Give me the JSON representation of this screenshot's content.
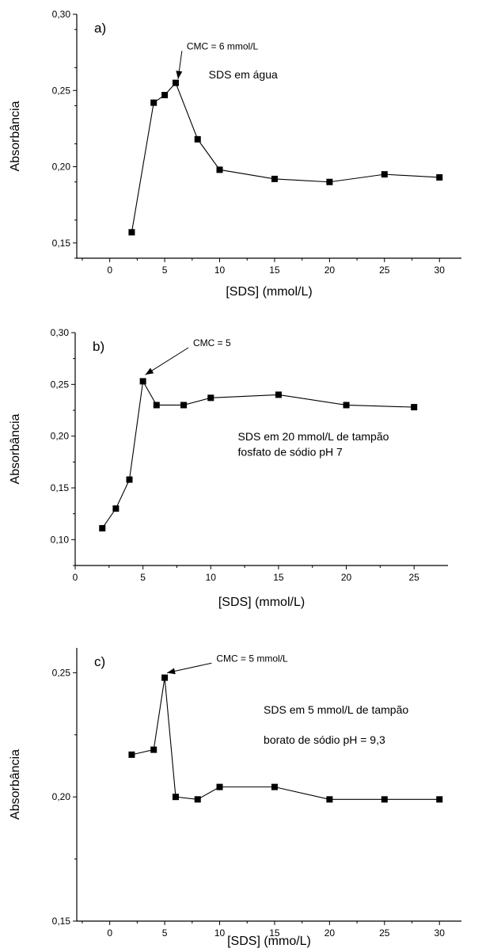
{
  "chart_data": [
    {
      "type": "line",
      "panel_label": "a)",
      "xlabel": "[SDS] (mmol/L)",
      "ylabel": "Absorbância",
      "xlim": [
        -3,
        32
      ],
      "ylim": [
        0.14,
        0.3
      ],
      "x_ticks": [
        0,
        5,
        10,
        15,
        20,
        25,
        30
      ],
      "x_tick_labels": [
        "0",
        "5",
        "10",
        "15",
        "20",
        "25",
        "30"
      ],
      "y_ticks": [
        0.15,
        0.2,
        0.25,
        0.3
      ],
      "y_tick_labels": [
        "0,15",
        "0,20",
        "0,25",
        "0,30"
      ],
      "y_minor_step": 0.025,
      "x": [
        2,
        4,
        5,
        6,
        8,
        10,
        15,
        20,
        25,
        30
      ],
      "y": [
        0.157,
        0.242,
        0.247,
        0.255,
        0.218,
        0.198,
        0.192,
        0.19,
        0.195,
        0.193
      ],
      "annotations": [
        {
          "id": "cmc",
          "text": "CMC = 6 mmol/L",
          "x": 7.0,
          "y": 0.277,
          "arrow_to": [
            6,
            0.256
          ]
        },
        {
          "id": "label",
          "text": "SDS em água",
          "x": 9.0,
          "y": 0.258
        }
      ],
      "grid": false
    },
    {
      "type": "line",
      "panel_label": "b)",
      "xlabel": "[SDS] (mmol/L)",
      "ylabel": "Absorbância",
      "xlim": [
        0,
        27.5
      ],
      "ylim": [
        0.075,
        0.3
      ],
      "x_ticks": [
        0,
        5,
        10,
        15,
        20,
        25
      ],
      "x_tick_labels": [
        "0",
        "5",
        "10",
        "15",
        "20",
        "25"
      ],
      "y_ticks": [
        0.1,
        0.15,
        0.2,
        0.25,
        0.3
      ],
      "y_tick_labels": [
        "0,10",
        "0,15",
        "0,20",
        "0,25",
        "0,30"
      ],
      "y_minor_step": 0.025,
      "x": [
        2,
        3,
        4,
        5,
        6,
        8,
        10,
        15,
        20,
        25
      ],
      "y": [
        0.111,
        0.13,
        0.158,
        0.253,
        0.23,
        0.23,
        0.237,
        0.24,
        0.23,
        0.228
      ],
      "annotations": [
        {
          "id": "cmc",
          "text": "CMC = 5",
          "x": 8.7,
          "y": 0.287,
          "arrow_to": [
            5,
            0.257
          ]
        },
        {
          "id": "label1",
          "text": "SDS em 20 mmol/L de tampão",
          "x": 12.0,
          "y": 0.196
        },
        {
          "id": "label2",
          "text": "fosfato de sódio pH 7",
          "x": 12.0,
          "y": 0.181
        }
      ],
      "grid": false
    },
    {
      "type": "line",
      "panel_label": "c)",
      "xlabel": "[SDS]  (mmo/L)",
      "ylabel": "Absorbância",
      "xlim": [
        -3,
        32
      ],
      "ylim": [
        0.15,
        0.26
      ],
      "x_ticks": [
        0,
        5,
        10,
        15,
        20,
        25,
        30
      ],
      "x_tick_labels": [
        "0",
        "5",
        "10",
        "15",
        "20",
        "25",
        "30"
      ],
      "y_ticks": [
        0.15,
        0.2,
        0.25
      ],
      "y_tick_labels": [
        "0,15",
        "0,20",
        "0,25"
      ],
      "y_minor_step": 0.025,
      "x": [
        2,
        4,
        5,
        6,
        8,
        10,
        15,
        20,
        25,
        30
      ],
      "y": [
        0.217,
        0.219,
        0.248,
        0.2,
        0.199,
        0.204,
        0.204,
        0.199,
        0.199,
        0.199
      ],
      "annotations": [
        {
          "id": "cmc",
          "text": "CMC = 5 mmol/L",
          "x": 9.7,
          "y": 0.2545,
          "arrow_to": [
            5,
            0.249
          ]
        },
        {
          "id": "label1",
          "text": "SDS em 5 mmol/L de tampão",
          "x": 14.0,
          "y": 0.2335
        },
        {
          "id": "label2",
          "text": "borato de sódio pH = 9,3",
          "x": 14.0,
          "y": 0.2215
        }
      ],
      "grid": false
    }
  ]
}
